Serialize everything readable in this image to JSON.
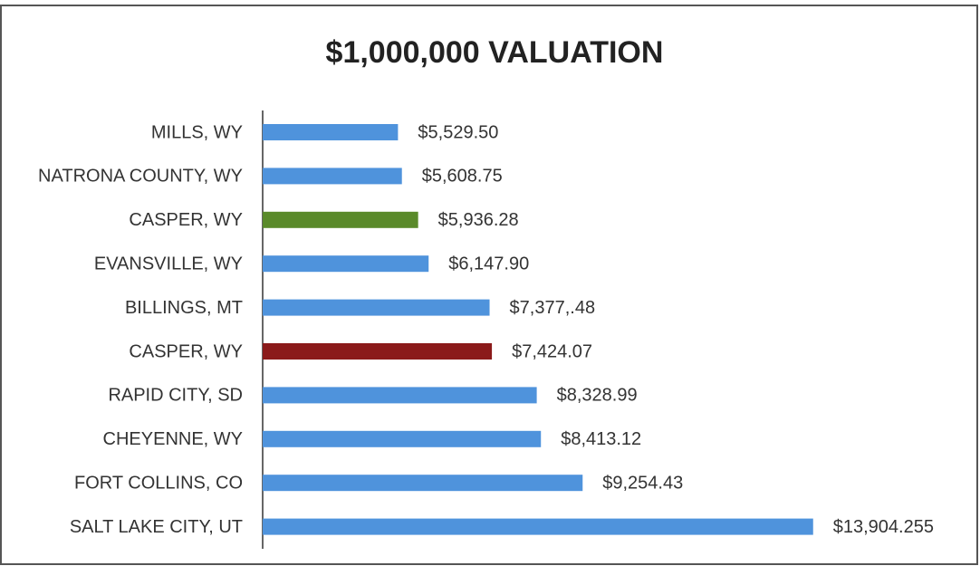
{
  "chart_data": {
    "type": "bar",
    "orientation": "horizontal",
    "title": "$1,000,000 VALUATION",
    "categories": [
      "MILLS, WY",
      "NATRONA COUNTY, WY",
      "CASPER, WY",
      "EVANSVILLE, WY",
      "BILLINGS, MT",
      "CASPER, WY",
      "RAPID CITY, SD",
      "CHEYENNE, WY",
      "FORT COLLINS, CO",
      "SALT LAKE CITY, UT"
    ],
    "values": [
      5529.5,
      5608.75,
      5936.28,
      6147.9,
      7377.48,
      7424.07,
      8328.99,
      8413.12,
      9254.43,
      13904.255
    ],
    "value_labels": [
      "$5,529.50",
      "$5,608.75",
      "$5,936.28",
      "$6,147.90",
      "$7,377,.48",
      "$7,424.07",
      "$8,328.99",
      "$8,413.12",
      "$9,254.43",
      "$13,904.255"
    ],
    "colors": [
      "#4f93dc",
      "#4f93dc",
      "#5a8a2a",
      "#4f93dc",
      "#4f93dc",
      "#8b1a1a",
      "#4f93dc",
      "#4f93dc",
      "#4f93dc",
      "#4f93dc"
    ],
    "xlim": [
      2800,
      14000
    ]
  }
}
